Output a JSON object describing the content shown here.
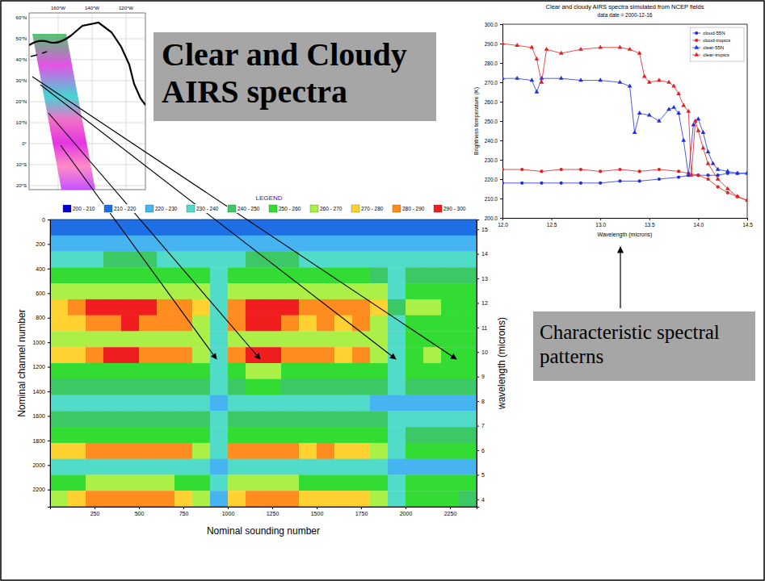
{
  "title": "Clear and Cloudy AIRS spectra",
  "annotation": "Characteristic spectral patterns",
  "map": {
    "lat_labels": [
      "60°N",
      "50°N",
      "40°N",
      "30°N",
      "20°N",
      "10°N",
      "0°",
      "10°S",
      "20°S"
    ],
    "lon_labels": [
      "160°W",
      "140°W",
      "120°W"
    ]
  },
  "chart_data": [
    {
      "type": "line",
      "title": "Clear and cloudy AIRS spectra simulated from NCEP fields",
      "subtitle": "data date = 2000-12-16",
      "xlabel": "Wavelength (microns)",
      "ylabel": "Brightness temperature (K)",
      "xlim": [
        12.0,
        14.5
      ],
      "xticks": [
        {
          "value": 12.0,
          "label": "12.0"
        },
        {
          "value": 12.5,
          "label": "12.5"
        },
        {
          "value": 13.0,
          "label": "13.0"
        },
        {
          "value": 13.5,
          "label": "13.5"
        },
        {
          "value": 14.0,
          "label": "14.0"
        },
        {
          "value": 14.5,
          "label": "14.5"
        }
      ],
      "ylim": [
        200,
        300
      ],
      "yticks": [
        {
          "value": 200,
          "label": "200.0"
        },
        {
          "value": 210,
          "label": "210.0"
        },
        {
          "value": 220,
          "label": "220.0"
        },
        {
          "value": 230,
          "label": "230.0"
        },
        {
          "value": 240,
          "label": "240.0"
        },
        {
          "value": 250,
          "label": "250.0"
        },
        {
          "value": 260,
          "label": "260.0"
        },
        {
          "value": 270,
          "label": "270.0"
        },
        {
          "value": 280,
          "label": "280.0"
        },
        {
          "value": 290,
          "label": "290.0"
        },
        {
          "value": 300,
          "label": "300.0"
        }
      ],
      "legend": "upper right",
      "series": [
        {
          "name": "cloud-55N",
          "color": "#2030e0",
          "marker": "circle",
          "line_style": "solid",
          "x": [
            12.0,
            12.2,
            12.4,
            12.6,
            12.8,
            13.0,
            13.2,
            13.4,
            13.6,
            13.8,
            13.9,
            14.0,
            14.1,
            14.2,
            14.3,
            14.4,
            14.5
          ],
          "values": [
            218,
            218,
            218,
            218,
            218,
            218,
            219,
            219,
            220,
            221,
            222,
            222,
            222,
            222,
            223,
            223,
            223
          ]
        },
        {
          "name": "cloud-tropics",
          "color": "#e02020",
          "marker": "circle",
          "line_style": "solid",
          "x": [
            12.0,
            12.2,
            12.4,
            12.6,
            12.8,
            13.0,
            13.2,
            13.4,
            13.6,
            13.8,
            13.9,
            14.0,
            14.1,
            14.2,
            14.3,
            14.4,
            14.5
          ],
          "values": [
            225,
            225,
            224,
            225,
            225,
            224,
            225,
            224,
            225,
            224,
            223,
            222,
            220,
            216,
            213,
            211,
            209
          ]
        },
        {
          "name": "clear-55N",
          "color": "#2030e0",
          "marker": "triangle",
          "line_style": "solid",
          "x": [
            12.0,
            12.15,
            12.3,
            12.35,
            12.4,
            12.6,
            12.8,
            13.0,
            13.2,
            13.3,
            13.35,
            13.4,
            13.5,
            13.6,
            13.7,
            13.75,
            13.8,
            13.85,
            13.9,
            13.95,
            14.0,
            14.05,
            14.1,
            14.15,
            14.2,
            14.3,
            14.4,
            14.5
          ],
          "values": [
            272,
            272,
            271,
            265,
            272,
            272,
            271,
            271,
            270,
            268,
            244,
            254,
            253,
            250,
            256,
            257,
            254,
            240,
            222,
            248,
            251,
            244,
            234,
            228,
            225,
            224,
            223,
            223
          ]
        },
        {
          "name": "clear-tropics",
          "color": "#e02020",
          "marker": "triangle",
          "line_style": "solid",
          "x": [
            12.0,
            12.15,
            12.3,
            12.35,
            12.4,
            12.45,
            12.6,
            12.8,
            13.0,
            13.2,
            13.3,
            13.4,
            13.45,
            13.5,
            13.6,
            13.7,
            13.75,
            13.8,
            13.85,
            13.9,
            13.93,
            13.97,
            14.0,
            14.05,
            14.1,
            14.2,
            14.3,
            14.4,
            14.5
          ],
          "values": [
            290,
            289,
            288,
            282,
            270,
            287,
            285,
            287,
            288,
            288,
            287,
            285,
            273,
            270,
            271,
            270,
            268,
            264,
            258,
            255,
            222,
            250,
            245,
            236,
            228,
            220,
            215,
            211,
            209
          ]
        }
      ]
    },
    {
      "type": "heatmap",
      "xlabel": "Nominal sounding number",
      "ylabel": "Nominal channel number",
      "y2label": "wavelength (microns)",
      "xlim": [
        0,
        2400
      ],
      "xticks": [
        250,
        500,
        750,
        1000,
        1250,
        1500,
        1750,
        2000,
        2250
      ],
      "ylim": [
        0,
        2340
      ],
      "yticks": [
        0,
        200,
        400,
        600,
        800,
        1000,
        1200,
        1400,
        1600,
        1800,
        2000,
        2200
      ],
      "y2lim": [
        15.4,
        3.7
      ],
      "y2ticks": [
        15,
        14,
        13,
        12,
        11,
        10,
        9,
        8,
        7,
        6,
        5,
        4
      ],
      "x": [
        50,
        150,
        250,
        350,
        450,
        550,
        650,
        750,
        850,
        950,
        1050,
        1150,
        1250,
        1350,
        1450,
        1550,
        1650,
        1750,
        1850,
        1950,
        2050,
        2150,
        2250,
        2350
      ],
      "y": [
        65,
        195,
        325,
        455,
        585,
        715,
        845,
        975,
        1105,
        1235,
        1365,
        1495,
        1625,
        1755,
        1885,
        2015,
        2145,
        2275
      ],
      "cells": [
        [
          214,
          215,
          215,
          216,
          216,
          216,
          216,
          215,
          215,
          214,
          216,
          217,
          217,
          216,
          215,
          215,
          215,
          215,
          214,
          214,
          214,
          214,
          213,
          213
        ],
        [
          225,
          226,
          227,
          228,
          228,
          228,
          227,
          227,
          226,
          224,
          228,
          229,
          229,
          228,
          227,
          227,
          226,
          226,
          225,
          224,
          224,
          224,
          223,
          223
        ],
        [
          236,
          237,
          239,
          240,
          240,
          240,
          239,
          238,
          237,
          233,
          239,
          241,
          241,
          240,
          239,
          239,
          238,
          238,
          236,
          234,
          235,
          235,
          234,
          234
        ],
        [
          250,
          251,
          254,
          255,
          255,
          255,
          254,
          253,
          250,
          234,
          254,
          256,
          256,
          255,
          253,
          253,
          252,
          252,
          249,
          239,
          248,
          248,
          247,
          246
        ],
        [
          262,
          263,
          266,
          267,
          267,
          267,
          266,
          265,
          262,
          234,
          266,
          268,
          268,
          267,
          265,
          265,
          264,
          264,
          261,
          239,
          258,
          259,
          256,
          254
        ],
        [
          275,
          280,
          290,
          292,
          293,
          291,
          288,
          285,
          270,
          235,
          285,
          294,
          293,
          290,
          282,
          286,
          280,
          284,
          270,
          240,
          260,
          262,
          258,
          255
        ],
        [
          272,
          277,
          287,
          289,
          290,
          288,
          285,
          282,
          267,
          232,
          282,
          291,
          290,
          287,
          279,
          283,
          277,
          281,
          267,
          237,
          257,
          259,
          255,
          252
        ],
        [
          261,
          262,
          264,
          265,
          265,
          265,
          264,
          263,
          262,
          234,
          264,
          266,
          266,
          265,
          264,
          264,
          263,
          263,
          261,
          239,
          258,
          259,
          256,
          254
        ],
        [
          273,
          278,
          288,
          290,
          291,
          289,
          286,
          283,
          268,
          233,
          283,
          292,
          291,
          288,
          280,
          284,
          278,
          282,
          268,
          238,
          258,
          260,
          256,
          253
        ],
        [
          255,
          256,
          258,
          259,
          259,
          259,
          258,
          257,
          256,
          234,
          258,
          260,
          260,
          259,
          257,
          257,
          256,
          256,
          254,
          239,
          253,
          254,
          252,
          251
        ],
        [
          245,
          246,
          248,
          249,
          249,
          249,
          248,
          247,
          246,
          233,
          248,
          250,
          250,
          249,
          247,
          247,
          246,
          246,
          244,
          238,
          243,
          243,
          242,
          241
        ],
        [
          230,
          231,
          233,
          234,
          234,
          234,
          233,
          232,
          231,
          228,
          233,
          235,
          235,
          234,
          232,
          232,
          231,
          231,
          229,
          227,
          228,
          228,
          227,
          227
        ],
        [
          241,
          242,
          244,
          245,
          245,
          245,
          244,
          243,
          242,
          232,
          244,
          246,
          246,
          245,
          243,
          243,
          242,
          242,
          240,
          236,
          239,
          239,
          238,
          238
        ],
        [
          251,
          252,
          254,
          255,
          255,
          255,
          254,
          253,
          251,
          234,
          254,
          256,
          256,
          255,
          253,
          253,
          252,
          252,
          250,
          238,
          249,
          249,
          248,
          247
        ],
        [
          270,
          275,
          285,
          287,
          288,
          286,
          283,
          280,
          265,
          230,
          280,
          289,
          288,
          285,
          277,
          281,
          275,
          279,
          265,
          235,
          255,
          257,
          253,
          250
        ],
        [
          231,
          232,
          234,
          235,
          235,
          235,
          234,
          233,
          232,
          228,
          234,
          236,
          236,
          235,
          233,
          233,
          232,
          232,
          230,
          227,
          229,
          229,
          228,
          228
        ],
        [
          257,
          258,
          260,
          261,
          261,
          261,
          260,
          259,
          257,
          233,
          260,
          262,
          262,
          261,
          259,
          259,
          258,
          258,
          256,
          238,
          255,
          255,
          254,
          253
        ],
        [
          267,
          272,
          282,
          284,
          285,
          283,
          280,
          277,
          262,
          227,
          277,
          286,
          285,
          282,
          274,
          278,
          272,
          276,
          262,
          232,
          252,
          254,
          250,
          247
        ]
      ],
      "colorbar": {
        "title": "LEGEND",
        "bins": [
          200,
          210,
          220,
          230,
          240,
          250,
          260,
          270,
          280,
          290,
          300
        ],
        "labels": [
          "200 - 210",
          "210 - 220",
          "220 - 230",
          "230 - 240",
          "240 - 250",
          "250 - 260",
          "260 - 270",
          "270 - 280",
          "280 - 290",
          "290 - 300"
        ],
        "colors": [
          "#0000c8",
          "#1e6ee6",
          "#46b4f0",
          "#50dcc8",
          "#3cc864",
          "#32dc32",
          "#aaf046",
          "#ffd232",
          "#ff8c1e",
          "#f01e1e"
        ]
      }
    }
  ]
}
